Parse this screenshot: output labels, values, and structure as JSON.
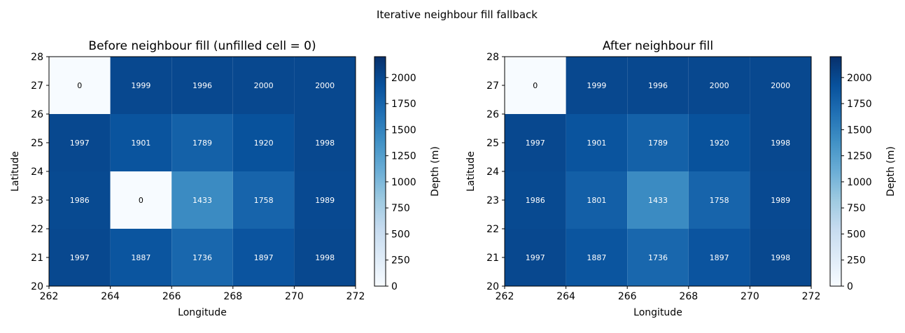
{
  "suptitle": "Iterative neighbour fill fallback",
  "chart_data": [
    {
      "type": "heatmap",
      "title": "Before neighbour fill (unfilled cell = 0)",
      "xlabel": "Longitude",
      "ylabel": "Latitude",
      "x_edges": [
        262,
        264,
        266,
        268,
        270,
        272
      ],
      "y_edges": [
        20,
        22,
        24,
        26,
        28
      ],
      "x_ticks": [
        "262",
        "264",
        "266",
        "268",
        "270",
        "272"
      ],
      "y_ticks": [
        "20",
        "21",
        "22",
        "23",
        "24",
        "25",
        "26",
        "27",
        "28"
      ],
      "rows_top_to_bottom": [
        [
          0,
          1999,
          1996,
          2000,
          2000
        ],
        [
          1997,
          1901,
          1789,
          1920,
          1998
        ],
        [
          1986,
          0,
          1433,
          1758,
          1989
        ],
        [
          1997,
          1887,
          1736,
          1897,
          1998
        ]
      ],
      "colorbar": {
        "label": "Depth (m)",
        "vmin": 0,
        "vmax": 2200,
        "ticks": [
          "0",
          "250",
          "500",
          "750",
          "1000",
          "1250",
          "1500",
          "1750",
          "2000"
        ],
        "colormap": "Blues"
      }
    },
    {
      "type": "heatmap",
      "title": "After neighbour fill",
      "xlabel": "Longitude",
      "ylabel": "Latitude",
      "x_edges": [
        262,
        264,
        266,
        268,
        270,
        272
      ],
      "y_edges": [
        20,
        22,
        24,
        26,
        28
      ],
      "x_ticks": [
        "262",
        "264",
        "266",
        "268",
        "270",
        "272"
      ],
      "y_ticks": [
        "20",
        "21",
        "22",
        "23",
        "24",
        "25",
        "26",
        "27",
        "28"
      ],
      "rows_top_to_bottom": [
        [
          0,
          1999,
          1996,
          2000,
          2000
        ],
        [
          1997,
          1901,
          1789,
          1920,
          1998
        ],
        [
          1986,
          1801,
          1433,
          1758,
          1989
        ],
        [
          1997,
          1887,
          1736,
          1897,
          1998
        ]
      ],
      "colorbar": {
        "label": "Depth (m)",
        "vmin": 0,
        "vmax": 2200,
        "ticks": [
          "0",
          "250",
          "500",
          "750",
          "1000",
          "1250",
          "1500",
          "1750",
          "2000"
        ],
        "colormap": "Blues"
      }
    }
  ]
}
